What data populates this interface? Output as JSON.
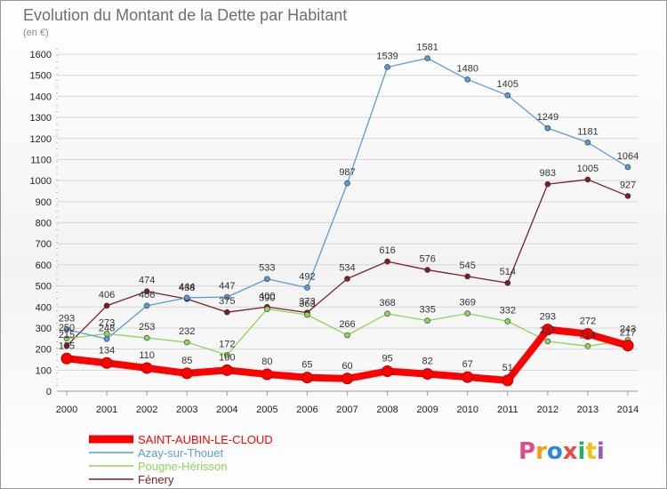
{
  "chart_data": {
    "type": "line",
    "title": "Evolution du Montant de la Dette par Habitant",
    "subtitle": "(en €)",
    "x": [
      "2000",
      "2001",
      "2002",
      "2003",
      "2004",
      "2005",
      "2006",
      "2007",
      "2008",
      "2009",
      "2010",
      "2011",
      "2012",
      "2013",
      "2014"
    ],
    "ylim": [
      0,
      1600
    ],
    "yticks": [
      0,
      100,
      200,
      300,
      400,
      500,
      600,
      700,
      800,
      900,
      1000,
      1100,
      1200,
      1300,
      1400,
      1500,
      1600
    ],
    "grid": true,
    "legend": "bottom-left",
    "series": [
      {
        "name": "SAINT-AUBIN-LE-CLOUD",
        "color": "#ff0000",
        "width": "thick",
        "values": [
          155,
          134,
          110,
          85,
          100,
          80,
          65,
          60,
          95,
          82,
          67,
          51,
          293,
          272,
          217
        ]
      },
      {
        "name": "Azay-sur-Thouet",
        "color": "#5b9bd5",
        "width": "thin",
        "values": [
          293,
          248,
          406,
          444,
          447,
          533,
          492,
          987,
          1539,
          1581,
          1480,
          1405,
          1249,
          1181,
          1064
        ]
      },
      {
        "name": "Pougne-Hérisson",
        "color": "#8fd45f",
        "width": "thin",
        "values": [
          250,
          273,
          253,
          232,
          172,
          390,
          363,
          266,
          368,
          335,
          369,
          332,
          237,
          214,
          243
        ]
      },
      {
        "name": "Fénery",
        "color": "#7b1f26",
        "width": "thin",
        "values": [
          215,
          406,
          474,
          438,
          375,
          400,
          373,
          534,
          616,
          576,
          545,
          514,
          983,
          1005,
          927
        ]
      }
    ]
  },
  "logo": {
    "text": "Proxiti",
    "letter_colors": [
      "#e24b8a",
      "#f39c12",
      "#2e86de",
      "#e74c3c",
      "#27ae60",
      "#f1c40f",
      "#9b59b6"
    ]
  }
}
